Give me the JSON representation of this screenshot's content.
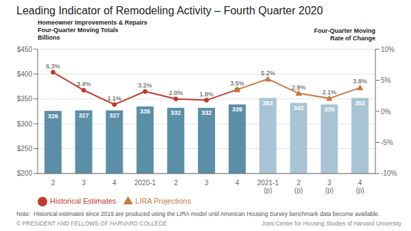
{
  "chart_data": {
    "type": "bar",
    "title": "Leading Indicator of Remodeling Activity – Fourth Quarter 2020",
    "ylabel": [
      "Homeowner Improvements & Repairs",
      "Four-Quarter Moving Totals",
      "Billions"
    ],
    "y2label": [
      "Four-Quarter Moving",
      "Rate of Change"
    ],
    "categories": [
      "2",
      "3",
      "4",
      "2020-1",
      "2",
      "3",
      "4",
      "2021-1\n(p)",
      "2\n(p)",
      "3\n(p)",
      "4\n(p)"
    ],
    "series": [
      {
        "type": "bar",
        "values": [
          326,
          327,
          327,
          335,
          332,
          332,
          339,
          352,
          342,
          339,
          352
        ],
        "colors": [
          "#5b8fa8",
          "#5b8fa8",
          "#5b8fa8",
          "#5b8fa8",
          "#5b8fa8",
          "#5b8fa8",
          "#5b8fa8",
          "#a8c4d4",
          "#a8c4d4",
          "#a8c4d4",
          "#a8c4d4"
        ],
        "data_labels": true
      },
      {
        "name": "Historical Estimates",
        "type": "line",
        "axis": "y2",
        "color": "#c0392b",
        "marker": "circle",
        "values": [
          6.3,
          3.4,
          1.1,
          3.2,
          2.0,
          1.8,
          3.5,
          null,
          null,
          null,
          null
        ],
        "value_labels": [
          "6.3%",
          "3.4%",
          "1.1%",
          "3.2%",
          "2.0%",
          "1.8%",
          "3.5%",
          null,
          null,
          null,
          null
        ],
        "data_labels": true
      },
      {
        "name": "LIRA Projections",
        "type": "line",
        "axis": "y2",
        "color": "#c87941",
        "marker": "triangle",
        "values": [
          null,
          null,
          null,
          null,
          null,
          null,
          3.5,
          5.2,
          2.9,
          2.1,
          3.8
        ],
        "value_labels": [
          null,
          null,
          null,
          null,
          null,
          null,
          "3.5%",
          "5.2%",
          "2.9%",
          "2.1%",
          "3.8%"
        ],
        "data_labels": true
      }
    ],
    "ylim": [
      200,
      450
    ],
    "yticks": [
      {
        "value": 200,
        "label": "$200"
      },
      {
        "value": 250,
        "label": "$250"
      },
      {
        "value": 300,
        "label": "$300"
      },
      {
        "value": 350,
        "label": "$350"
      },
      {
        "value": 400,
        "label": "$400"
      },
      {
        "value": 450,
        "label": "$450"
      }
    ],
    "y2lim": [
      -10,
      10
    ],
    "y2ticks": [
      {
        "value": -10,
        "label": "-10%"
      },
      {
        "value": -5,
        "label": "-5%"
      },
      {
        "value": 0,
        "label": "0%"
      },
      {
        "value": 5,
        "label": "5%"
      },
      {
        "value": 10,
        "label": "10%"
      }
    ],
    "grid": true,
    "legend": "bottom left",
    "annotations": [
      "Note:  Historical estimates since 2019 are produced using the LIRA model until American Housing Survey benchmark data become available.",
      "© PRESIDENT AND FELLOWS OF HARVARD COLLEGE",
      "Joint Center for Housing Studies of Harvard University"
    ]
  }
}
